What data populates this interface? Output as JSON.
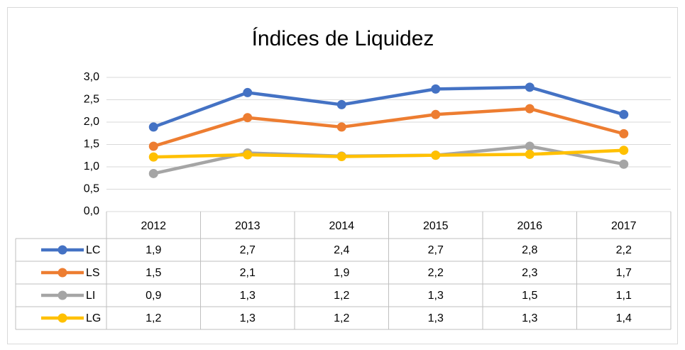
{
  "chart_data": {
    "type": "line",
    "title": "Índices de Liquidez",
    "categories": [
      "2012",
      "2013",
      "2014",
      "2015",
      "2016",
      "2017"
    ],
    "series": [
      {
        "name": "LC",
        "color": "#4472c4",
        "values": [
          1.89,
          2.66,
          2.39,
          2.74,
          2.78,
          2.17
        ],
        "value_labels": [
          "1,9",
          "2,7",
          "2,4",
          "2,7",
          "2,8",
          "2,2"
        ]
      },
      {
        "name": "LS",
        "color": "#ed7d31",
        "values": [
          1.46,
          2.1,
          1.89,
          2.17,
          2.3,
          1.74
        ],
        "value_labels": [
          "1,5",
          "2,1",
          "1,9",
          "2,2",
          "2,3",
          "1,7"
        ]
      },
      {
        "name": "LI",
        "color": "#a5a5a5",
        "values": [
          0.85,
          1.31,
          1.24,
          1.26,
          1.46,
          1.06
        ],
        "value_labels": [
          "0,9",
          "1,3",
          "1,2",
          "1,3",
          "1,5",
          "1,1"
        ]
      },
      {
        "name": "LG",
        "color": "#ffc000",
        "values": [
          1.22,
          1.27,
          1.23,
          1.26,
          1.28,
          1.37
        ],
        "value_labels": [
          "1,2",
          "1,3",
          "1,2",
          "1,3",
          "1,3",
          "1,4"
        ]
      }
    ],
    "ylim": [
      0,
      3
    ],
    "yticks": [
      {
        "value": 0,
        "label": "0,0"
      },
      {
        "value": 0.5,
        "label": "0,5"
      },
      {
        "value": 1,
        "label": "1,0"
      },
      {
        "value": 1.5,
        "label": "1,5"
      },
      {
        "value": 2,
        "label": "2,0"
      },
      {
        "value": 2.5,
        "label": "2,5"
      },
      {
        "value": 3,
        "label": "3,0"
      }
    ],
    "grid": true
  }
}
